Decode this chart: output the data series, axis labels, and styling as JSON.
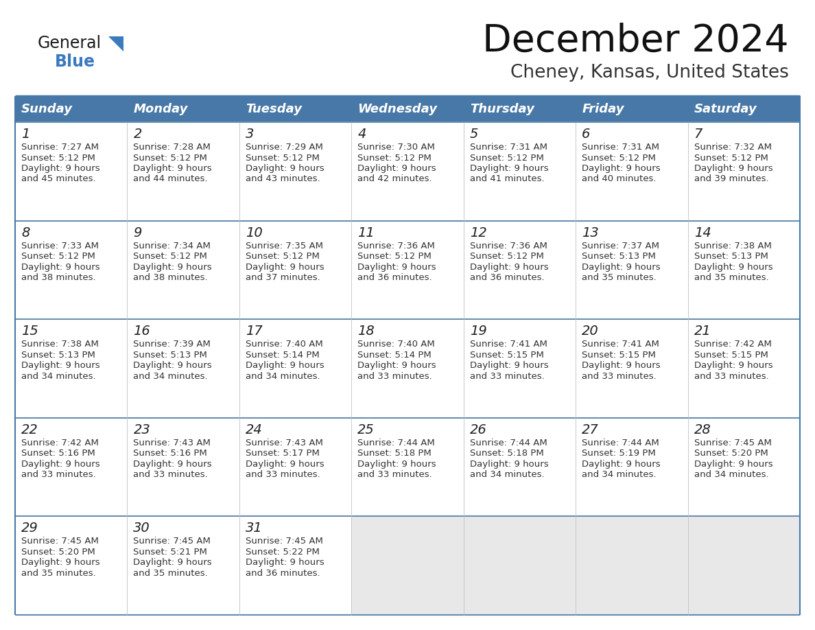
{
  "title": "December 2024",
  "subtitle": "Cheney, Kansas, United States",
  "header_color": "#4878a8",
  "header_text_color": "#ffffff",
  "border_color": "#4878a8",
  "row_border_color": "#6a8fb0",
  "text_color": "#333333",
  "day_num_color": "#222222",
  "empty_cell_color": "#e8e8e8",
  "white_cell_color": "#ffffff",
  "days_of_week": [
    "Sunday",
    "Monday",
    "Tuesday",
    "Wednesday",
    "Thursday",
    "Friday",
    "Saturday"
  ],
  "calendar_data": [
    [
      {
        "day": 1,
        "sunrise": "7:27 AM",
        "sunset": "5:12 PM",
        "daylight": "9 hours and 45 minutes."
      },
      {
        "day": 2,
        "sunrise": "7:28 AM",
        "sunset": "5:12 PM",
        "daylight": "9 hours and 44 minutes."
      },
      {
        "day": 3,
        "sunrise": "7:29 AM",
        "sunset": "5:12 PM",
        "daylight": "9 hours and 43 minutes."
      },
      {
        "day": 4,
        "sunrise": "7:30 AM",
        "sunset": "5:12 PM",
        "daylight": "9 hours and 42 minutes."
      },
      {
        "day": 5,
        "sunrise": "7:31 AM",
        "sunset": "5:12 PM",
        "daylight": "9 hours and 41 minutes."
      },
      {
        "day": 6,
        "sunrise": "7:31 AM",
        "sunset": "5:12 PM",
        "daylight": "9 hours and 40 minutes."
      },
      {
        "day": 7,
        "sunrise": "7:32 AM",
        "sunset": "5:12 PM",
        "daylight": "9 hours and 39 minutes."
      }
    ],
    [
      {
        "day": 8,
        "sunrise": "7:33 AM",
        "sunset": "5:12 PM",
        "daylight": "9 hours and 38 minutes."
      },
      {
        "day": 9,
        "sunrise": "7:34 AM",
        "sunset": "5:12 PM",
        "daylight": "9 hours and 38 minutes."
      },
      {
        "day": 10,
        "sunrise": "7:35 AM",
        "sunset": "5:12 PM",
        "daylight": "9 hours and 37 minutes."
      },
      {
        "day": 11,
        "sunrise": "7:36 AM",
        "sunset": "5:12 PM",
        "daylight": "9 hours and 36 minutes."
      },
      {
        "day": 12,
        "sunrise": "7:36 AM",
        "sunset": "5:12 PM",
        "daylight": "9 hours and 36 minutes."
      },
      {
        "day": 13,
        "sunrise": "7:37 AM",
        "sunset": "5:13 PM",
        "daylight": "9 hours and 35 minutes."
      },
      {
        "day": 14,
        "sunrise": "7:38 AM",
        "sunset": "5:13 PM",
        "daylight": "9 hours and 35 minutes."
      }
    ],
    [
      {
        "day": 15,
        "sunrise": "7:38 AM",
        "sunset": "5:13 PM",
        "daylight": "9 hours and 34 minutes."
      },
      {
        "day": 16,
        "sunrise": "7:39 AM",
        "sunset": "5:13 PM",
        "daylight": "9 hours and 34 minutes."
      },
      {
        "day": 17,
        "sunrise": "7:40 AM",
        "sunset": "5:14 PM",
        "daylight": "9 hours and 34 minutes."
      },
      {
        "day": 18,
        "sunrise": "7:40 AM",
        "sunset": "5:14 PM",
        "daylight": "9 hours and 33 minutes."
      },
      {
        "day": 19,
        "sunrise": "7:41 AM",
        "sunset": "5:15 PM",
        "daylight": "9 hours and 33 minutes."
      },
      {
        "day": 20,
        "sunrise": "7:41 AM",
        "sunset": "5:15 PM",
        "daylight": "9 hours and 33 minutes."
      },
      {
        "day": 21,
        "sunrise": "7:42 AM",
        "sunset": "5:15 PM",
        "daylight": "9 hours and 33 minutes."
      }
    ],
    [
      {
        "day": 22,
        "sunrise": "7:42 AM",
        "sunset": "5:16 PM",
        "daylight": "9 hours and 33 minutes."
      },
      {
        "day": 23,
        "sunrise": "7:43 AM",
        "sunset": "5:16 PM",
        "daylight": "9 hours and 33 minutes."
      },
      {
        "day": 24,
        "sunrise": "7:43 AM",
        "sunset": "5:17 PM",
        "daylight": "9 hours and 33 minutes."
      },
      {
        "day": 25,
        "sunrise": "7:44 AM",
        "sunset": "5:18 PM",
        "daylight": "9 hours and 33 minutes."
      },
      {
        "day": 26,
        "sunrise": "7:44 AM",
        "sunset": "5:18 PM",
        "daylight": "9 hours and 34 minutes."
      },
      {
        "day": 27,
        "sunrise": "7:44 AM",
        "sunset": "5:19 PM",
        "daylight": "9 hours and 34 minutes."
      },
      {
        "day": 28,
        "sunrise": "7:45 AM",
        "sunset": "5:20 PM",
        "daylight": "9 hours and 34 minutes."
      }
    ],
    [
      {
        "day": 29,
        "sunrise": "7:45 AM",
        "sunset": "5:20 PM",
        "daylight": "9 hours and 35 minutes."
      },
      {
        "day": 30,
        "sunrise": "7:45 AM",
        "sunset": "5:21 PM",
        "daylight": "9 hours and 35 minutes."
      },
      {
        "day": 31,
        "sunrise": "7:45 AM",
        "sunset": "5:22 PM",
        "daylight": "9 hours and 36 minutes."
      },
      null,
      null,
      null,
      null
    ]
  ],
  "logo_general_color": "#1a1a1a",
  "logo_blue_color": "#3a7abf",
  "logo_triangle_color": "#3a7abf",
  "fig_width": 11.88,
  "fig_height": 9.18,
  "dpi": 100
}
